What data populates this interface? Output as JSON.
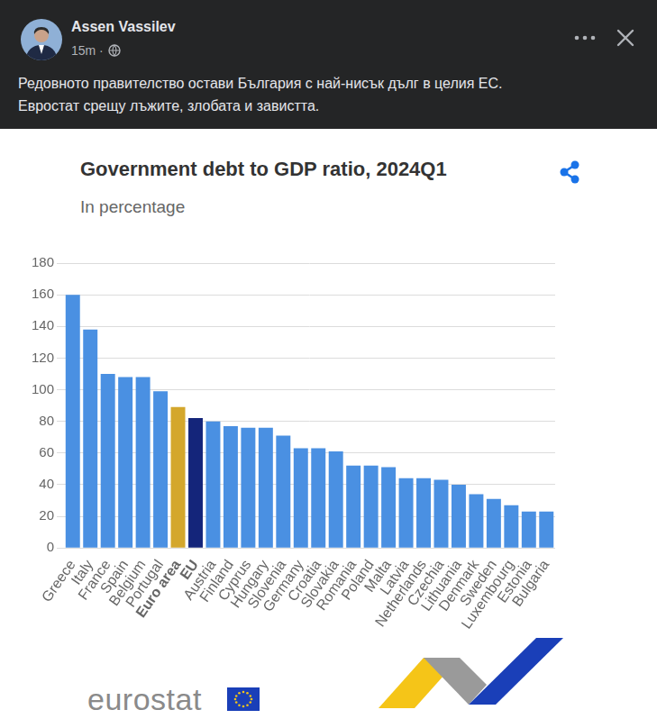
{
  "post": {
    "author": "Assen Vassilev",
    "time": "15m ·",
    "text": [
      "Редовното правителство остави България с най-нисък дълг в целия ЕС.",
      "Евростат срещу лъжите, злобата и завистта."
    ]
  },
  "source": "eurostat",
  "chart_data": {
    "type": "bar",
    "title": "Government debt to GDP ratio, 2024Q1",
    "subtitle": "In percentage",
    "categories": [
      "Greece",
      "Italy",
      "France",
      "Spain",
      "Belgium",
      "Portugal",
      "Euro area",
      "EU",
      "Austria",
      "Finland",
      "Cyprus",
      "Hungary",
      "Slovenia",
      "Germany",
      "Croatia",
      "Slovakia",
      "Romania",
      "Poland",
      "Malta",
      "Latvia",
      "Netherlands",
      "Czechia",
      "Lithuania",
      "Denmark",
      "Sweden",
      "Luxembourg",
      "Estonia",
      "Bulgaria"
    ],
    "values": [
      160,
      138,
      110,
      108,
      108,
      99,
      89,
      82,
      80,
      77,
      76,
      76,
      71,
      63,
      63,
      61,
      52,
      52,
      51,
      44,
      44,
      43,
      40,
      34,
      31,
      27,
      23,
      23
    ],
    "colors": [
      "#4a90e2",
      "#4a90e2",
      "#4a90e2",
      "#4a90e2",
      "#4a90e2",
      "#4a90e2",
      "#d4a72c",
      "#14257a",
      "#4a90e2",
      "#4a90e2",
      "#4a90e2",
      "#4a90e2",
      "#4a90e2",
      "#4a90e2",
      "#4a90e2",
      "#4a90e2",
      "#4a90e2",
      "#4a90e2",
      "#4a90e2",
      "#4a90e2",
      "#4a90e2",
      "#4a90e2",
      "#4a90e2",
      "#4a90e2",
      "#4a90e2",
      "#4a90e2",
      "#4a90e2",
      "#4a90e2"
    ],
    "ylim": [
      0,
      180
    ],
    "yticks": [
      0,
      20,
      40,
      60,
      80,
      100,
      120,
      140,
      160,
      180
    ],
    "grid": true
  }
}
